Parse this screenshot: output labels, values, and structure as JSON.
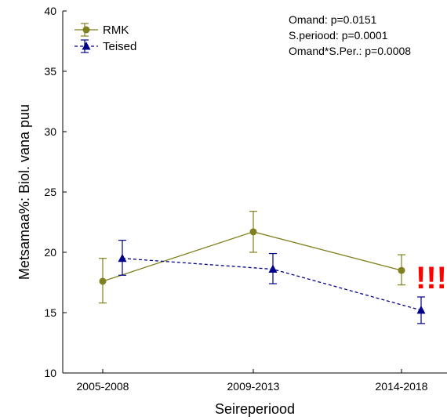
{
  "chart_data": {
    "type": "line",
    "title": "",
    "xlabel": "Seireperiood",
    "ylabel": "Metsamaa%: Biol. vana puu",
    "categories": [
      "2005-2008",
      "2009-2013",
      "2014-2018"
    ],
    "ylim": [
      10,
      40
    ],
    "yticks": [
      "10",
      "15",
      "20",
      "25",
      "30",
      "35",
      "40"
    ],
    "grid": false,
    "legend_position": "top-left",
    "series": [
      {
        "name": "RMK",
        "color": "#808020",
        "line_style": "solid",
        "marker": "circle",
        "values": [
          17.6,
          21.7,
          18.5
        ],
        "error_low": [
          15.8,
          20.0,
          17.3
        ],
        "error_high": [
          19.5,
          23.4,
          19.8
        ]
      },
      {
        "name": "Teised",
        "color": "#00008b",
        "line_style": "dashed",
        "marker": "triangle",
        "values": [
          19.5,
          18.6,
          15.2
        ],
        "error_low": [
          18.1,
          17.4,
          14.1
        ],
        "error_high": [
          21.0,
          19.9,
          16.3
        ]
      }
    ],
    "annotations": [
      "Omand: p=0.0151",
      "S.periood: p=0.0001",
      "Omand*S.Per.: p=0.0008"
    ],
    "highlight": {
      "text": "!!!",
      "color": "#ff0000"
    }
  }
}
